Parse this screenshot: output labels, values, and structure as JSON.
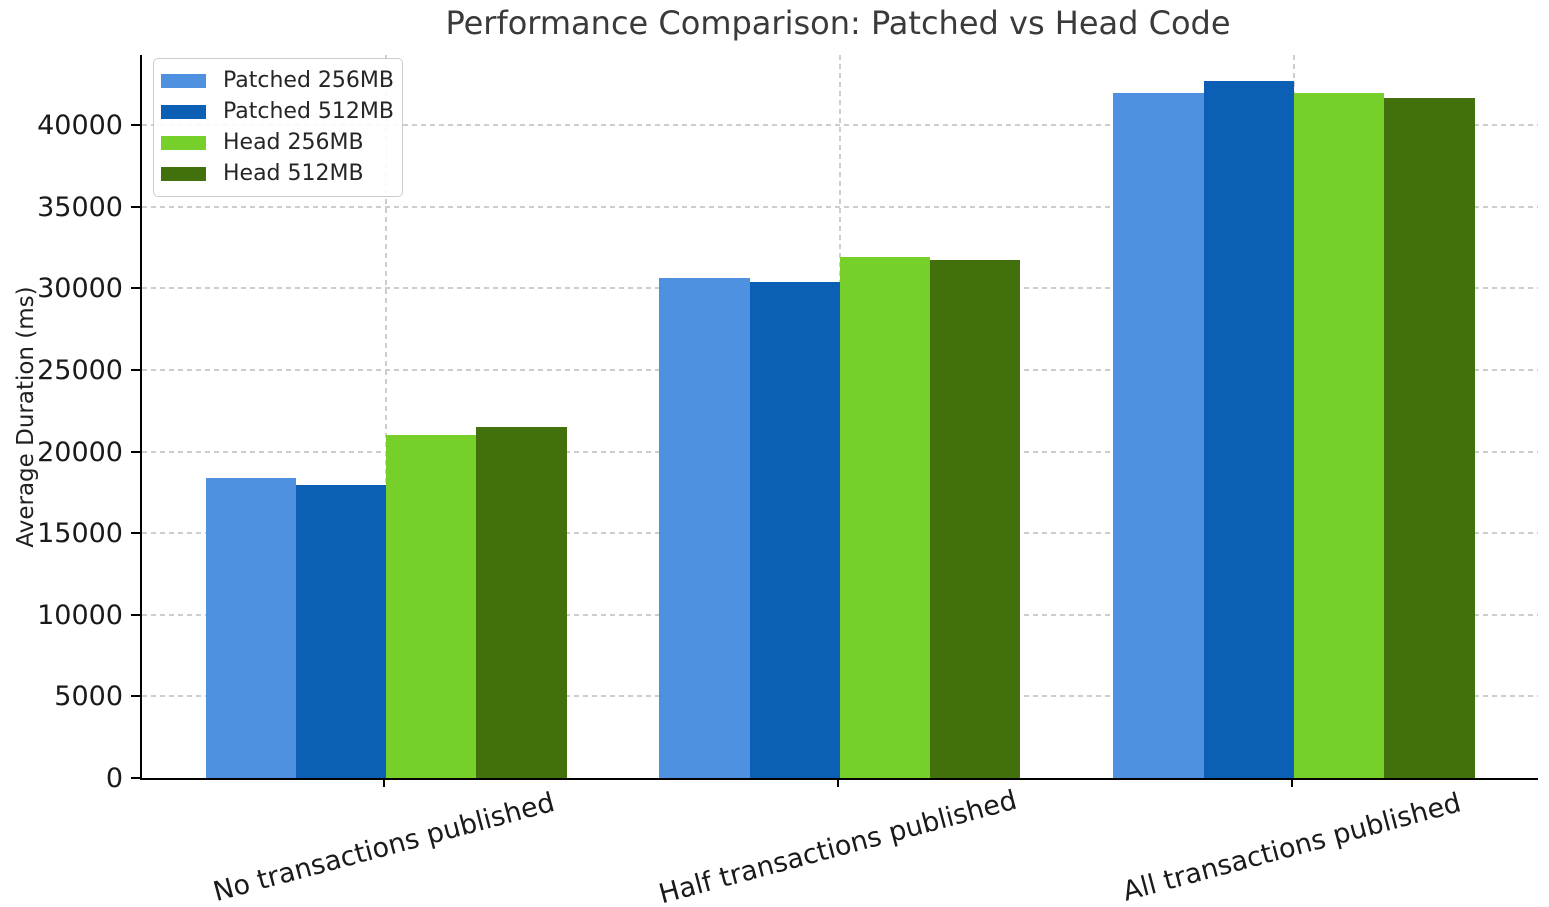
{
  "figure": {
    "title": "Performance Comparison: Patched vs Head Code",
    "ylabel": "Average Duration (ms)"
  },
  "chart_data": {
    "type": "bar",
    "title": "Performance Comparison: Patched vs Head Code",
    "xlabel": "",
    "ylabel": "Average Duration (ms)",
    "categories": [
      "No transactions published",
      "Half transactions published",
      "All transactions published"
    ],
    "series": [
      {
        "name": "Patched 256MB",
        "color": "#4e91e0",
        "values": [
          18400,
          30650,
          42000
        ]
      },
      {
        "name": "Patched 512MB",
        "color": "#0b5fb5",
        "values": [
          17950,
          30400,
          42700
        ]
      },
      {
        "name": "Head 256MB",
        "color": "#77d02a",
        "values": [
          21000,
          31900,
          41950
        ]
      },
      {
        "name": "Head 512MB",
        "color": "#41700d",
        "values": [
          21500,
          31750,
          41650
        ]
      }
    ],
    "ylim": [
      0,
      44300
    ],
    "yticks": [
      0,
      5000,
      10000,
      15000,
      20000,
      25000,
      30000,
      35000,
      40000
    ],
    "xtick_rotation_deg": 15,
    "grid": "both-dashed",
    "gridline_color": "#cdcdcd",
    "legend_position": "upper-left",
    "background_color": "#ffffff",
    "spine_color": "#000000",
    "text_color": "#262626"
  }
}
